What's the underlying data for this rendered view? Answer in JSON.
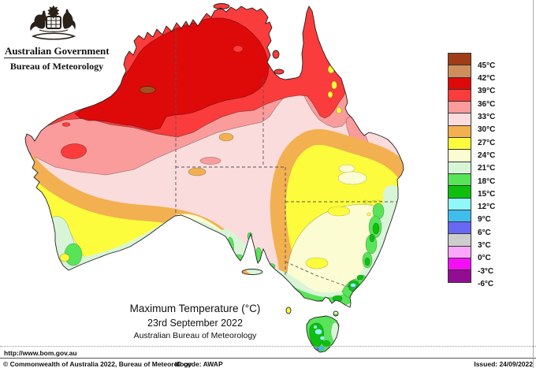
{
  "header": {
    "government": "Australian Government",
    "bureau": "Bureau of Meteorology"
  },
  "title": {
    "line1": "Maximum Temperature (°C)",
    "line2": "23rd September 2022",
    "line3": "Australian Bureau of Meteorology"
  },
  "legend": {
    "cells": [
      {
        "color": "#9E3D17",
        "speckled": false
      },
      {
        "color": "#CE8F5C",
        "speckled": "brown"
      },
      {
        "color": "#DE0A0A",
        "speckled": false
      },
      {
        "color": "#FA3C3C",
        "speckled": false
      },
      {
        "color": "#FA9C9C",
        "speckled": false
      },
      {
        "color": "#FBDCDC",
        "speckled": "pink"
      },
      {
        "color": "#F2B050",
        "speckled": false
      },
      {
        "color": "#FCFC3C",
        "speckled": false
      },
      {
        "color": "#FCFCD2",
        "speckled": false
      },
      {
        "color": "#D8F5D8",
        "speckled": false
      },
      {
        "color": "#58E458",
        "speckled": false
      },
      {
        "color": "#0FBF0F",
        "speckled": false
      },
      {
        "color": "#90F8F8",
        "speckled": false
      },
      {
        "color": "#3FBDEE",
        "speckled": false
      },
      {
        "color": "#6868F5",
        "speckled": false
      },
      {
        "color": "#CDCDCD",
        "speckled": false
      },
      {
        "color": "#FBA6FB",
        "speckled": false
      },
      {
        "color": "#F50DF5",
        "speckled": false
      },
      {
        "color": "#930D93",
        "speckled": false
      }
    ],
    "labels": [
      "45°C",
      "42°C",
      "39°C",
      "36°C",
      "33°C",
      "30°C",
      "27°C",
      "24°C",
      "21°C",
      "18°C",
      "15°C",
      "12°C",
      "9°C",
      "6°C",
      "3°C",
      "0°C",
      "-3°C",
      "-6°C"
    ]
  },
  "footer": {
    "url": "http://www.bom.gov.au",
    "copyright": "© Commonwealth of Australia 2022, Bureau of Meteorology",
    "id_code": "ID code: AWAP",
    "issued": "Issued: 24/09/2022"
  }
}
